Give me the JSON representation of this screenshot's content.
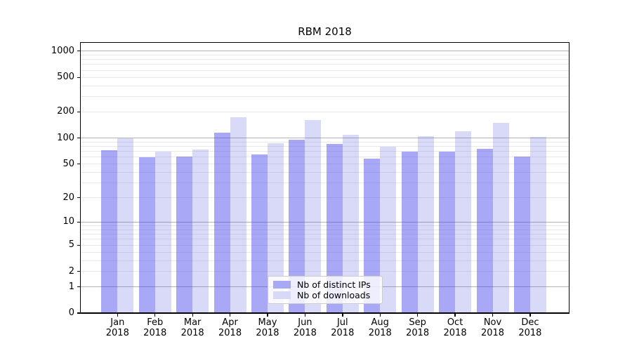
{
  "title": "RBM 2018",
  "colors": {
    "background": "#ffffff",
    "major_grid": "#b3b3b3",
    "minor_grid": "#e9e9e9",
    "axis": "#000000",
    "text": "#000000",
    "legend_border": "#cccccc",
    "series_distinct_ips": "#a8a8f5",
    "series_downloads": "#d8d8f8"
  },
  "legend": {
    "items": [
      {
        "label": "Nb of distinct IPs"
      },
      {
        "label": "Nb of downloads"
      }
    ]
  },
  "chart_data": {
    "type": "bar",
    "title": "RBM 2018",
    "xlabel": "",
    "ylabel": "",
    "scale": "log10(1+y)",
    "grid": true,
    "legend_position": "lower center",
    "year_label": "2018",
    "categories": [
      "Jan",
      "Feb",
      "Mar",
      "Apr",
      "May",
      "Jun",
      "Jul",
      "Aug",
      "Sep",
      "Oct",
      "Nov",
      "Dec"
    ],
    "yticks": [
      0,
      1,
      2,
      5,
      10,
      20,
      50,
      100,
      200,
      500,
      1000
    ],
    "ylim": [
      0,
      1240
    ],
    "series": [
      {
        "name": "Nb of distinct IPs",
        "swatch_color": "#a8a8f5",
        "fill_color": "rgba(62,62,235,0.45)",
        "values": [
          72,
          60,
          61,
          115,
          65,
          96,
          85,
          58,
          69,
          70,
          75,
          61
        ]
      },
      {
        "name": "Nb of downloads",
        "swatch_color": "#d8d8f8",
        "fill_color": "rgba(80,80,225,0.22)",
        "values": [
          100,
          70,
          74,
          175,
          87,
          160,
          109,
          80,
          106,
          120,
          150,
          104
        ]
      }
    ]
  }
}
